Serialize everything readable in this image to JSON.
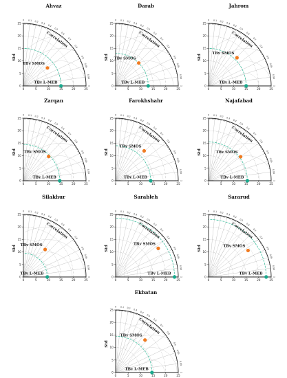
{
  "chart_data": [
    {
      "type": "scatter",
      "title": "Ahvaz",
      "ylabel": "Std",
      "corr_label": "Correlation",
      "xlim": [
        0,
        25
      ],
      "ylim": [
        0,
        25
      ],
      "xticks": [
        0,
        5,
        10,
        15,
        20,
        25
      ],
      "yticks": [
        0,
        5,
        10,
        15,
        20,
        25
      ],
      "corr_ticks": [
        0,
        0.1,
        0.2,
        0.3,
        0.4,
        0.5,
        0.6,
        0.7,
        0.8,
        0.9,
        0.95,
        0.99,
        1
      ],
      "reference_std": 15.0,
      "points": [
        {
          "name": "TBv SMOS",
          "std": 12.0,
          "corr": 0.8
        },
        {
          "name": "TBv L-MEB",
          "std": 15.0,
          "corr": 1.0
        }
      ]
    },
    {
      "type": "scatter",
      "title": "Darab",
      "ylabel": "Std",
      "corr_label": "Correlation",
      "xlim": [
        0,
        25
      ],
      "ylim": [
        0,
        25
      ],
      "xticks": [
        0,
        5,
        10,
        15,
        20,
        25
      ],
      "yticks": [
        0,
        5,
        10,
        15,
        20,
        25
      ],
      "corr_ticks": [
        0,
        0.1,
        0.2,
        0.3,
        0.4,
        0.5,
        0.6,
        0.7,
        0.8,
        0.9,
        0.95,
        0.99,
        1
      ],
      "reference_std": 13.0,
      "points": [
        {
          "name": "TBv SMOS",
          "std": 13.0,
          "corr": 0.71
        },
        {
          "name": "TBv L-MEB",
          "std": 13.0,
          "corr": 1.0
        }
      ]
    },
    {
      "type": "scatter",
      "title": "Jahrom",
      "ylabel": "Std",
      "corr_label": "Correlation",
      "xlim": [
        0,
        25
      ],
      "ylim": [
        0,
        25
      ],
      "xticks": [
        0,
        5,
        10,
        15,
        20,
        25
      ],
      "yticks": [
        0,
        5,
        10,
        15,
        20,
        25
      ],
      "corr_ticks": [
        0,
        0.1,
        0.2,
        0.3,
        0.4,
        0.5,
        0.6,
        0.7,
        0.8,
        0.9,
        0.95,
        0.99,
        1
      ],
      "reference_std": 15.0,
      "points": [
        {
          "name": "TBv SMOS",
          "std": 16.0,
          "corr": 0.71
        },
        {
          "name": "TBv L-MEB",
          "std": 15.0,
          "corr": 1.0
        }
      ]
    },
    {
      "type": "scatter",
      "title": "Zarqan",
      "ylabel": "Std",
      "corr_label": "Correlation",
      "xlim": [
        0,
        25
      ],
      "ylim": [
        0,
        25
      ],
      "xticks": [
        0,
        5,
        10,
        15,
        20,
        25
      ],
      "yticks": [
        0,
        5,
        10,
        15,
        20,
        25
      ],
      "corr_ticks": [
        0,
        0.1,
        0.2,
        0.3,
        0.4,
        0.5,
        0.6,
        0.7,
        0.8,
        0.9,
        0.95,
        0.99,
        1
      ],
      "reference_std": 14.5,
      "points": [
        {
          "name": "TBv SMOS",
          "std": 14.0,
          "corr": 0.72
        },
        {
          "name": "TBv L-MEB",
          "std": 14.5,
          "corr": 1.0
        }
      ]
    },
    {
      "type": "scatter",
      "title": "Farokhshahr",
      "ylabel": "Std",
      "corr_label": "Correlation",
      "xlim": [
        0,
        25
      ],
      "ylim": [
        0,
        25
      ],
      "xticks": [
        0,
        5,
        10,
        15,
        20,
        25
      ],
      "yticks": [
        0,
        5,
        10,
        15,
        20,
        25
      ],
      "corr_ticks": [
        0,
        0.1,
        0.2,
        0.3,
        0.4,
        0.5,
        0.6,
        0.7,
        0.8,
        0.9,
        0.95,
        0.99,
        1
      ],
      "reference_std": 14.0,
      "points": [
        {
          "name": "TBv SMOS",
          "std": 16.5,
          "corr": 0.69
        },
        {
          "name": "TBv L-MEB",
          "std": 14.0,
          "corr": 1.0
        }
      ]
    },
    {
      "type": "scatter",
      "title": "Najafabad",
      "ylabel": "Std",
      "corr_label": "Correlation",
      "xlim": [
        0,
        25
      ],
      "ylim": [
        0,
        25
      ],
      "xticks": [
        0,
        5,
        10,
        15,
        20,
        25
      ],
      "yticks": [
        0,
        5,
        10,
        15,
        20,
        25
      ],
      "corr_ticks": [
        0,
        0.1,
        0.2,
        0.3,
        0.4,
        0.5,
        0.6,
        0.7,
        0.8,
        0.9,
        0.95,
        0.99,
        1
      ],
      "reference_std": 15.5,
      "points": [
        {
          "name": "TBv SMOS",
          "std": 16.0,
          "corr": 0.8
        },
        {
          "name": "TBv L-MEB",
          "std": 15.5,
          "corr": 1.0
        }
      ]
    },
    {
      "type": "scatter",
      "title": "Silakhur",
      "ylabel": "Std",
      "corr_label": "Correlation",
      "xlim": [
        0,
        25
      ],
      "ylim": [
        0,
        25
      ],
      "xticks": [
        0,
        5,
        10,
        15,
        20,
        25
      ],
      "yticks": [
        0,
        5,
        10,
        15,
        20,
        25
      ],
      "corr_ticks": [
        0,
        0.1,
        0.2,
        0.3,
        0.4,
        0.5,
        0.6,
        0.7,
        0.8,
        0.9,
        0.95,
        0.99,
        1
      ],
      "reference_std": 9.5,
      "points": [
        {
          "name": "TBv SMOS",
          "std": 14.0,
          "corr": 0.62
        },
        {
          "name": "TBv L-MEB",
          "std": 9.5,
          "corr": 1.0
        }
      ]
    },
    {
      "type": "scatter",
      "title": "Sarableh",
      "ylabel": "Std",
      "corr_label": "Correlation",
      "xlim": [
        0,
        25
      ],
      "ylim": [
        0,
        25
      ],
      "xticks": [
        0,
        5,
        10,
        15,
        20,
        25
      ],
      "yticks": [
        0,
        5,
        10,
        15,
        20,
        25
      ],
      "corr_ticks": [
        0,
        0.1,
        0.2,
        0.3,
        0.4,
        0.5,
        0.6,
        0.7,
        0.8,
        0.9,
        0.95,
        0.99,
        1
      ],
      "reference_std": 23.5,
      "points": [
        {
          "name": "TBv SMOS",
          "std": 20.5,
          "corr": 0.83
        },
        {
          "name": "TBv L-MEB",
          "std": 23.5,
          "corr": 1.0
        }
      ]
    },
    {
      "type": "scatter",
      "title": "Sararud",
      "ylabel": "Std",
      "corr_label": "Correlation",
      "xlim": [
        0,
        25
      ],
      "ylim": [
        0,
        25
      ],
      "xticks": [
        0,
        5,
        10,
        15,
        20,
        25
      ],
      "yticks": [
        0,
        5,
        10,
        15,
        20,
        25
      ],
      "corr_ticks": [
        0,
        0.1,
        0.2,
        0.3,
        0.4,
        0.5,
        0.6,
        0.7,
        0.8,
        0.9,
        0.95,
        0.99,
        1
      ],
      "reference_std": 23.0,
      "points": [
        {
          "name": "TBv SMOS",
          "std": 19.0,
          "corr": 0.83
        },
        {
          "name": "TBv L-MEB",
          "std": 23.0,
          "corr": 1.0
        }
      ]
    },
    {
      "type": "scatter",
      "title": "Ekbatan",
      "ylabel": "Std",
      "corr_label": "Correlation",
      "xlim": [
        0,
        25
      ],
      "ylim": [
        0,
        25
      ],
      "xticks": [
        0,
        5,
        10,
        15,
        20,
        25
      ],
      "yticks": [
        0,
        5,
        10,
        15,
        20,
        25
      ],
      "corr_ticks": [
        0,
        0.1,
        0.2,
        0.3,
        0.4,
        0.5,
        0.6,
        0.7,
        0.8,
        0.9,
        0.95,
        0.99,
        1
      ],
      "reference_std": 14.5,
      "points": [
        {
          "name": "TBv SMOS",
          "std": 17.5,
          "corr": 0.67
        },
        {
          "name": "TBv L-MEB",
          "std": 14.5,
          "corr": 1.0
        }
      ]
    }
  ],
  "colors": {
    "smos": "#f07a20",
    "lmeb": "#1aa98d",
    "ref_arc": "#3fbf9f",
    "grid": "#b5b5b5",
    "rms": "#d8d8d8",
    "axis": "#222222"
  }
}
